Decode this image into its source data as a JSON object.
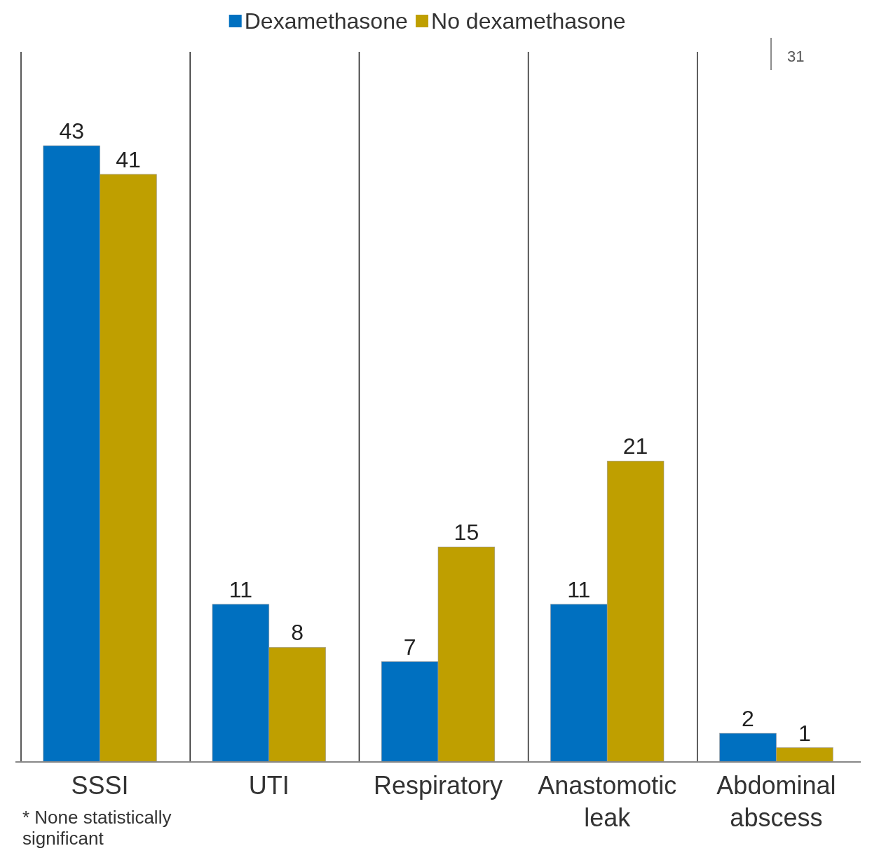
{
  "chart_data": {
    "type": "bar",
    "categories": [
      "SSSI",
      "UTI",
      "Respiratory",
      "Anastomotic leak",
      "Abdominal abscess"
    ],
    "series": [
      {
        "name": "Dexamethasone",
        "color": "#0070c0",
        "values": [
          43,
          11,
          7,
          11,
          2
        ]
      },
      {
        "name": "No dexamethasone",
        "color": "#bf9f00",
        "values": [
          41,
          8,
          15,
          21,
          1
        ]
      }
    ],
    "data_labels": true,
    "grid": "x",
    "legend": "top",
    "tick_labels": "x",
    "annotations": [
      "* None statistically significant",
      "31"
    ]
  }
}
